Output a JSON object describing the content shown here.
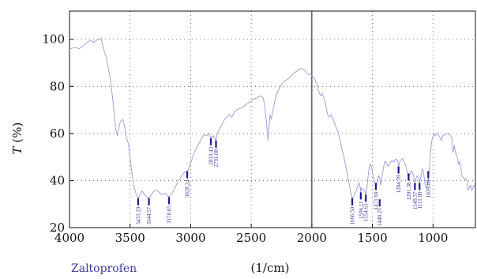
{
  "chart_data": {
    "type": "line",
    "sample_label": "Zaltoprofen",
    "xlabel": "(1/cm)",
    "ylabel_symbol": "T",
    "ylabel_unit": " (%)",
    "xlim": [
      4000,
      650
    ],
    "ylim": [
      20,
      112
    ],
    "x_ticks": [
      4000,
      3500,
      3000,
      2500,
      2000,
      1500,
      1000
    ],
    "y_ticks": [
      20,
      40,
      60,
      80,
      100
    ],
    "divider_x": 2000,
    "grid": "dotted",
    "line_color": "#9a9ad8",
    "marker_color": "#1a1a8c",
    "series": [
      {
        "values": [
          [
            4000,
            96
          ],
          [
            3950,
            96.5
          ],
          [
            3920,
            96
          ],
          [
            3880,
            97.5
          ],
          [
            3850,
            99
          ],
          [
            3820,
            99.5
          ],
          [
            3800,
            98.5
          ],
          [
            3780,
            99.5
          ],
          [
            3760,
            100
          ],
          [
            3740,
            100.5
          ],
          [
            3720,
            96
          ],
          [
            3700,
            93
          ],
          [
            3680,
            88
          ],
          [
            3660,
            82
          ],
          [
            3640,
            73
          ],
          [
            3620,
            62
          ],
          [
            3605,
            59
          ],
          [
            3595,
            62
          ],
          [
            3580,
            65
          ],
          [
            3560,
            66
          ],
          [
            3545,
            63
          ],
          [
            3530,
            58
          ],
          [
            3515,
            56
          ],
          [
            3500,
            50
          ],
          [
            3485,
            43
          ],
          [
            3470,
            38
          ],
          [
            3455,
            35
          ],
          [
            3440,
            33
          ],
          [
            3433,
            32.5
          ],
          [
            3420,
            34
          ],
          [
            3400,
            35.5
          ],
          [
            3380,
            34
          ],
          [
            3360,
            33
          ],
          [
            3344,
            32.5
          ],
          [
            3330,
            33.5
          ],
          [
            3310,
            35
          ],
          [
            3290,
            36
          ],
          [
            3270,
            35.5
          ],
          [
            3250,
            34.5
          ],
          [
            3230,
            34
          ],
          [
            3210,
            34.5
          ],
          [
            3190,
            33.5
          ],
          [
            3178,
            33
          ],
          [
            3160,
            34
          ],
          [
            3140,
            36
          ],
          [
            3120,
            38
          ],
          [
            3100,
            40
          ],
          [
            3080,
            41.5
          ],
          [
            3060,
            43
          ],
          [
            3040,
            44
          ],
          [
            3028,
            44
          ],
          [
            3010,
            46
          ],
          [
            2990,
            49
          ],
          [
            2970,
            52
          ],
          [
            2950,
            54
          ],
          [
            2930,
            56
          ],
          [
            2910,
            58
          ],
          [
            2890,
            59.5
          ],
          [
            2870,
            59
          ],
          [
            2850,
            60
          ],
          [
            2833,
            58
          ],
          [
            2815,
            59
          ],
          [
            2800,
            58
          ],
          [
            2791,
            57
          ],
          [
            2780,
            60
          ],
          [
            2760,
            62
          ],
          [
            2740,
            64
          ],
          [
            2720,
            66
          ],
          [
            2700,
            67
          ],
          [
            2680,
            68
          ],
          [
            2660,
            67
          ],
          [
            2640,
            69
          ],
          [
            2620,
            70
          ],
          [
            2600,
            70.5
          ],
          [
            2580,
            71
          ],
          [
            2560,
            71.5
          ],
          [
            2540,
            72.5
          ],
          [
            2520,
            73
          ],
          [
            2500,
            74
          ],
          [
            2480,
            74.5
          ],
          [
            2460,
            75
          ],
          [
            2440,
            75.5
          ],
          [
            2420,
            76
          ],
          [
            2400,
            75
          ],
          [
            2385,
            70
          ],
          [
            2370,
            62
          ],
          [
            2362,
            57
          ],
          [
            2355,
            62
          ],
          [
            2345,
            68
          ],
          [
            2335,
            66
          ],
          [
            2320,
            70
          ],
          [
            2300,
            75
          ],
          [
            2280,
            78
          ],
          [
            2260,
            80
          ],
          [
            2240,
            81.5
          ],
          [
            2220,
            82.5
          ],
          [
            2200,
            83
          ],
          [
            2180,
            84
          ],
          [
            2160,
            85
          ],
          [
            2140,
            86
          ],
          [
            2120,
            86.5
          ],
          [
            2100,
            87.5
          ],
          [
            2080,
            87.5
          ],
          [
            2060,
            87
          ],
          [
            2040,
            85.5
          ],
          [
            2020,
            85
          ],
          [
            2005,
            85
          ],
          [
            1990,
            84
          ],
          [
            1975,
            83
          ],
          [
            1960,
            81
          ],
          [
            1945,
            78
          ],
          [
            1930,
            76
          ],
          [
            1915,
            77
          ],
          [
            1900,
            75
          ],
          [
            1885,
            72
          ],
          [
            1870,
            68
          ],
          [
            1855,
            67
          ],
          [
            1840,
            68
          ],
          [
            1825,
            66
          ],
          [
            1810,
            64
          ],
          [
            1795,
            62
          ],
          [
            1780,
            60
          ],
          [
            1765,
            57
          ],
          [
            1750,
            53
          ],
          [
            1735,
            50
          ],
          [
            1720,
            46
          ],
          [
            1705,
            42
          ],
          [
            1690,
            38
          ],
          [
            1675,
            34
          ],
          [
            1667,
            32.5
          ],
          [
            1655,
            33
          ],
          [
            1640,
            35
          ],
          [
            1630,
            36
          ],
          [
            1620,
            38
          ],
          [
            1610,
            39
          ],
          [
            1600,
            37
          ],
          [
            1596,
            35
          ],
          [
            1588,
            37
          ],
          [
            1575,
            36
          ],
          [
            1565,
            36
          ],
          [
            1554,
            34
          ],
          [
            1545,
            37
          ],
          [
            1535,
            42
          ],
          [
            1525,
            46
          ],
          [
            1515,
            47
          ],
          [
            1505,
            45
          ],
          [
            1495,
            42
          ],
          [
            1485,
            40
          ],
          [
            1475,
            38
          ],
          [
            1471,
            36
          ],
          [
            1460,
            40
          ],
          [
            1450,
            42
          ],
          [
            1440,
            41
          ],
          [
            1430,
            38
          ],
          [
            1420,
            42
          ],
          [
            1410,
            45
          ],
          [
            1400,
            48
          ],
          [
            1390,
            48
          ],
          [
            1380,
            47
          ],
          [
            1370,
            46
          ],
          [
            1360,
            47
          ],
          [
            1350,
            48
          ],
          [
            1340,
            48.5
          ],
          [
            1330,
            48
          ],
          [
            1320,
            48
          ],
          [
            1310,
            49
          ],
          [
            1300,
            49
          ],
          [
            1290,
            48
          ],
          [
            1284,
            46
          ],
          [
            1275,
            48
          ],
          [
            1260,
            49
          ],
          [
            1250,
            49.5
          ],
          [
            1240,
            48
          ],
          [
            1230,
            47
          ],
          [
            1220,
            45
          ],
          [
            1210,
            43
          ],
          [
            1201,
            41
          ],
          [
            1190,
            43
          ],
          [
            1175,
            44
          ],
          [
            1160,
            42
          ],
          [
            1149,
            39
          ],
          [
            1140,
            41
          ],
          [
            1130,
            42
          ],
          [
            1120,
            41
          ],
          [
            1111,
            39
          ],
          [
            1100,
            42
          ],
          [
            1090,
            45
          ],
          [
            1080,
            44
          ],
          [
            1070,
            40
          ],
          [
            1060,
            37
          ],
          [
            1050,
            37
          ],
          [
            1039,
            40
          ],
          [
            1030,
            45
          ],
          [
            1020,
            52
          ],
          [
            1010,
            57
          ],
          [
            1000,
            59
          ],
          [
            990,
            60
          ],
          [
            980,
            59
          ],
          [
            970,
            60
          ],
          [
            960,
            60
          ],
          [
            950,
            59
          ],
          [
            940,
            58
          ],
          [
            930,
            57
          ],
          [
            920,
            59
          ],
          [
            900,
            59.5
          ],
          [
            880,
            60
          ],
          [
            860,
            59.5
          ],
          [
            845,
            58
          ],
          [
            835,
            52
          ],
          [
            825,
            55
          ],
          [
            815,
            52
          ],
          [
            800,
            50
          ],
          [
            790,
            47
          ],
          [
            780,
            48
          ],
          [
            770,
            45
          ],
          [
            760,
            42
          ],
          [
            750,
            41
          ],
          [
            740,
            40.5
          ],
          [
            730,
            41
          ],
          [
            720,
            40
          ],
          [
            710,
            36
          ],
          [
            700,
            37
          ],
          [
            690,
            38
          ],
          [
            680,
            36
          ],
          [
            670,
            37
          ],
          [
            660,
            38
          ],
          [
            650,
            37
          ]
        ]
      }
    ],
    "annotations": [
      {
        "label": "3433.29",
        "x": 3433.29,
        "y_top": 33.5
      },
      {
        "label": "3344.57",
        "x": 3344.57,
        "y_top": 33.5
      },
      {
        "label": "3178.65",
        "x": 3178.65,
        "y_top": 34
      },
      {
        "label": "3028.24",
        "x": 3028.24,
        "y_top": 45
      },
      {
        "label": "2833.43",
        "x": 2833.43,
        "y_top": 59
      },
      {
        "label": "2791.00",
        "x": 2791.0,
        "y_top": 58
      },
      {
        "label": "1666.50",
        "x": 1666.5,
        "y_top": 33.5
      },
      {
        "label": "1596.11",
        "x": 1596.11,
        "y_top": 36
      },
      {
        "label": "1554.63",
        "x": 1554.63,
        "y_top": 35
      },
      {
        "label": "1471.69",
        "x": 1471.69,
        "y_top": 40
      },
      {
        "label": "1440.25",
        "x": 1440.25,
        "y_top": 33
      },
      {
        "label": "1284.39",
        "x": 1284.39,
        "y_top": 47
      },
      {
        "label": "1201.38",
        "x": 1201.38,
        "y_top": 44
      },
      {
        "label": "1149.37",
        "x": 1149.37,
        "y_top": 40
      },
      {
        "label": "1111.00",
        "x": 1111.0,
        "y_top": 40
      },
      {
        "label": "1039.09",
        "x": 1039.09,
        "y_top": 45
      }
    ]
  }
}
